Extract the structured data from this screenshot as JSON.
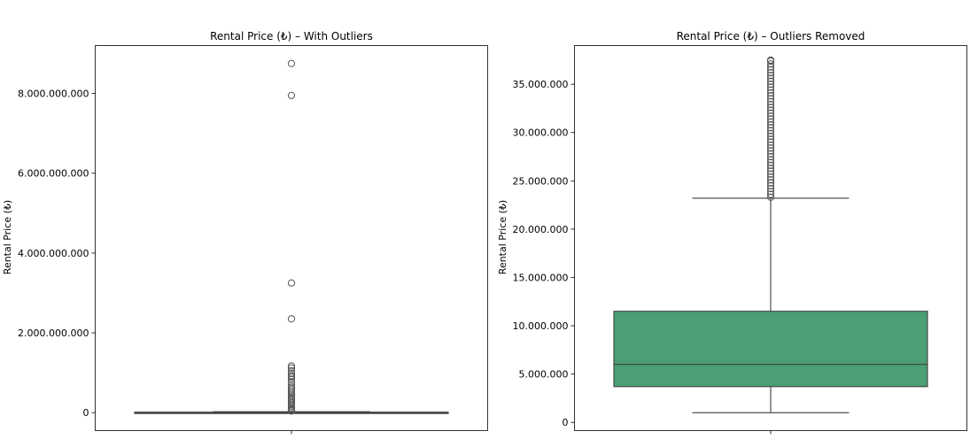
{
  "chart_data": [
    {
      "type": "box",
      "title": "Rental Price (₺) – With Outliers",
      "ylabel": "Rental Price (₺)",
      "xlabel": "",
      "ylim": [
        -450000000,
        9200000000
      ],
      "yticks": [
        0,
        2000000000,
        4000000000,
        6000000000,
        8000000000
      ],
      "ytick_labels": [
        "0",
        "2.000.000.000",
        "4.000.000.000",
        "6.000.000.000",
        "8.000.000.000"
      ],
      "box": {
        "whisker_low": 0,
        "q1": 3700000,
        "median": 6000000,
        "q3": 11500000,
        "whisker_high": 23200000,
        "color": "#4a9f74"
      },
      "outliers": [
        8750000000,
        7950000000,
        3250000000,
        2350000000,
        1170000000,
        1120000000,
        1050000000,
        980000000,
        930000000,
        890000000,
        840000000,
        760000000,
        690000000,
        640000000,
        590000000,
        540000000,
        490000000,
        440000000,
        400000000,
        360000000,
        320000000,
        280000000,
        240000000,
        200000000,
        160000000,
        120000000,
        90000000,
        60000000,
        40000000
      ],
      "box_color": "#4a9f74"
    },
    {
      "type": "box",
      "title": "Rental Price (₺) – Outliers Removed",
      "ylabel": "Rental Price (₺)",
      "xlabel": "",
      "ylim": [
        -850000,
        39000000
      ],
      "yticks": [
        0,
        5000000,
        10000000,
        15000000,
        20000000,
        25000000,
        30000000,
        35000000
      ],
      "ytick_labels": [
        "0",
        "5.000.000",
        "10.000.000",
        "15.000.000",
        "20.000.000",
        "25.000.000",
        "30.000.000",
        "35.000.000"
      ],
      "box": {
        "whisker_low": 1000000,
        "q1": 3700000,
        "median": 6000000,
        "q3": 11500000,
        "whisker_high": 23200000,
        "color": "#4a9f74"
      },
      "outliers": [
        23300000,
        23600000,
        23900000,
        24200000,
        24500000,
        24800000,
        25100000,
        25400000,
        25700000,
        26000000,
        26300000,
        26600000,
        26900000,
        27200000,
        27500000,
        27800000,
        28100000,
        28400000,
        28700000,
        29000000,
        29300000,
        29600000,
        29900000,
        30200000,
        30500000,
        30800000,
        31100000,
        31400000,
        31700000,
        32000000,
        32300000,
        32600000,
        32900000,
        33200000,
        33500000,
        33800000,
        34100000,
        34400000,
        34700000,
        35000000,
        35300000,
        35600000,
        35900000,
        36200000,
        36500000,
        36800000,
        37100000,
        37400000,
        37500000
      ],
      "box_color": "#4a9f74"
    }
  ]
}
